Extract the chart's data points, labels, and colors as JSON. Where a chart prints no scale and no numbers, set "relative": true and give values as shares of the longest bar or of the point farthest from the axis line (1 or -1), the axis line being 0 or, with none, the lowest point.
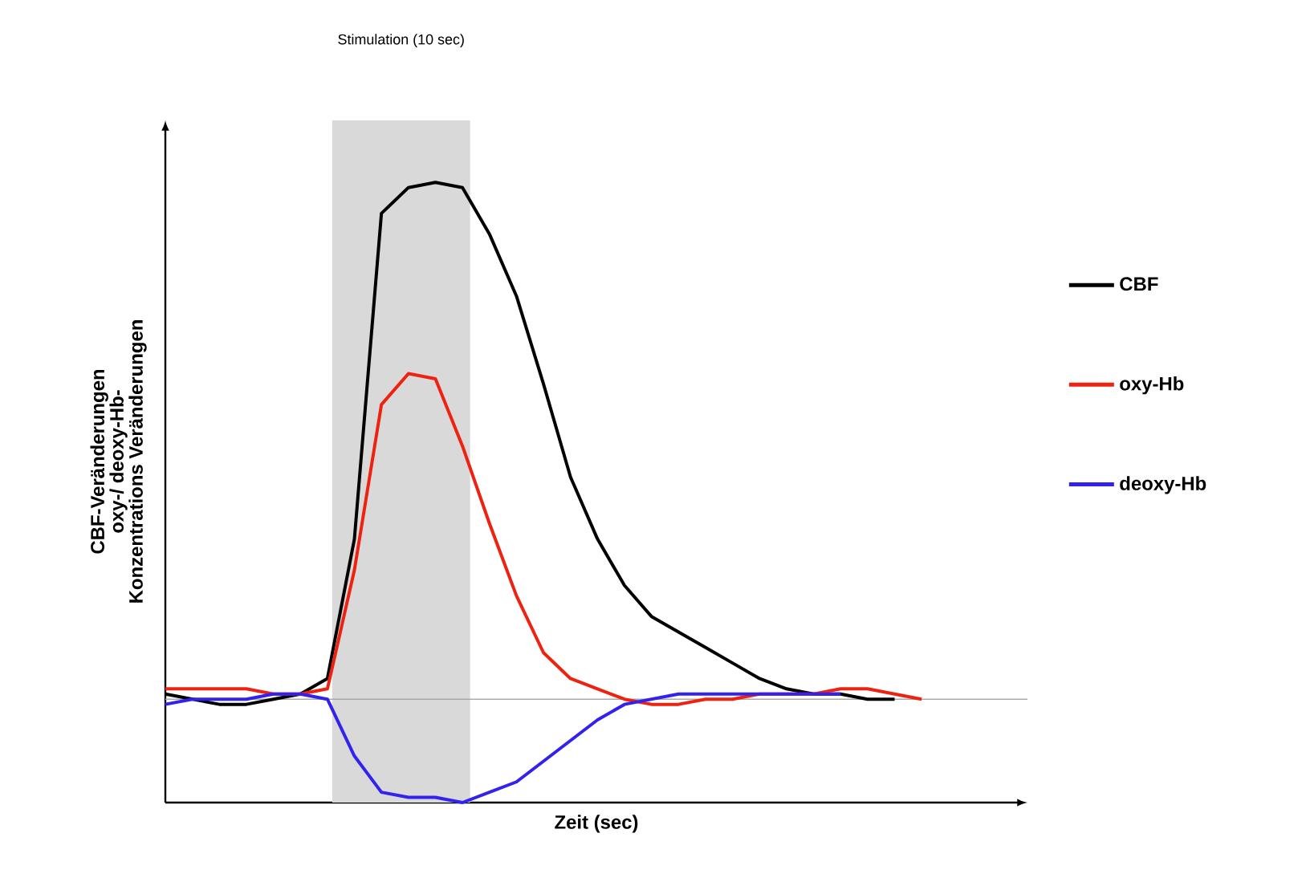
{
  "chart_data": {
    "type": "line",
    "relative": true,
    "xlabel": "Zeit (sec)",
    "ylabel": "CBF-Veränderungen oxy-/ deoxy-Hb-Konzentrations Veränderungen",
    "legend": "right",
    "marker": "none",
    "line_style": "solid",
    "categories": [
      null,
      null,
      null,
      null,
      null,
      null,
      null,
      null,
      null,
      null,
      null,
      null,
      null,
      null,
      null,
      null,
      null,
      null,
      null,
      null,
      null,
      null,
      null,
      null,
      null,
      null,
      null,
      null,
      null
    ],
    "annotations": [
      "Stimulation (10 sec)"
    ],
    "ref_lines": [
      {
        "axis": "y",
        "value": 0,
        "color": "#aaaaaa"
      }
    ],
    "series": [
      {
        "name": "CBF",
        "color": "#000000",
        "values": [
          0.01,
          0,
          -0.01,
          -0.01,
          0,
          0.01,
          0.04,
          0.31,
          0.94,
          0.99,
          1.0,
          0.99,
          0.9,
          0.78,
          0.61,
          0.43,
          0.31,
          0.22,
          0.16,
          0.13,
          0.1,
          0.07,
          0.04,
          0.02,
          0.01,
          0.01,
          0,
          0,
          null
        ]
      },
      {
        "name": "oxy-Hb",
        "color": "#ee2211",
        "values": [
          0.02,
          0.02,
          0.02,
          0.02,
          0.01,
          0.01,
          0.02,
          0.25,
          0.57,
          0.63,
          0.62,
          0.49,
          0.34,
          0.2,
          0.09,
          0.04,
          0.02,
          0,
          -0.01,
          -0.01,
          0,
          0,
          0.01,
          0.01,
          0.01,
          0.02,
          0.02,
          0.01,
          0
        ]
      },
      {
        "name": "deoxy-Hb",
        "color": "#3322ee",
        "values": [
          -0.01,
          0,
          0,
          0,
          0.01,
          0.01,
          0,
          -0.11,
          -0.18,
          -0.19,
          -0.19,
          -0.2,
          -0.18,
          -0.16,
          -0.12,
          -0.08,
          -0.04,
          -0.01,
          0,
          0.01,
          0.01,
          0.01,
          0.01,
          0.01,
          0.01,
          0.01,
          null,
          null,
          null
        ]
      }
    ]
  }
}
